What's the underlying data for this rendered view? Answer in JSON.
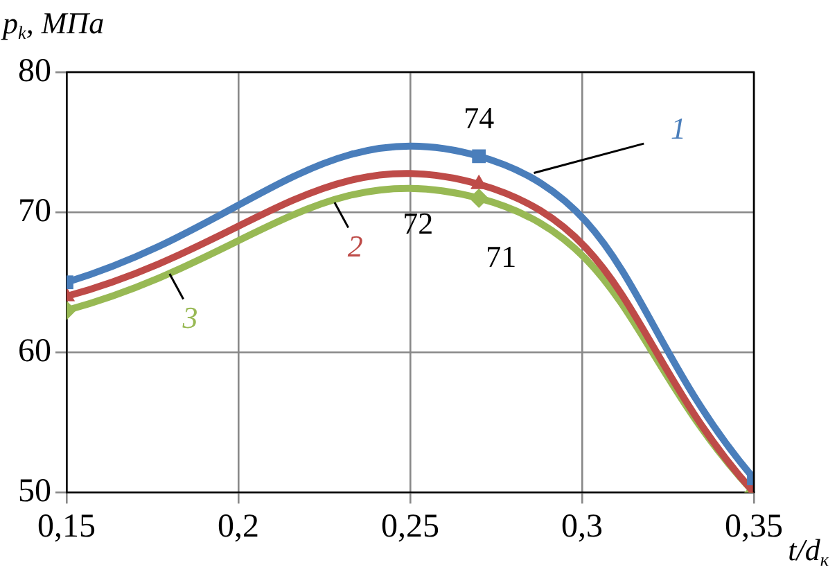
{
  "chart_data": {
    "type": "line",
    "ylabel": "p$_{k}$, МПа",
    "xlabel": "t/d$_{к}$",
    "x": [
      0.15,
      0.27,
      0.35
    ],
    "series": [
      {
        "name": "1",
        "color": "#4a7ebb",
        "values": [
          65,
          74,
          51
        ],
        "marker": "square",
        "value_labels": [
          null,
          "74",
          null
        ]
      },
      {
        "name": "2",
        "color": "#be4b48",
        "values": [
          64,
          72,
          50
        ],
        "marker": "triangle",
        "value_labels": [
          null,
          "72",
          null
        ]
      },
      {
        "name": "3",
        "color": "#98b954",
        "values": [
          63,
          71,
          50
        ],
        "marker": "diamond",
        "value_labels": [
          null,
          "71",
          null
        ]
      }
    ],
    "xlim": [
      0.15,
      0.35
    ],
    "xticks": [
      {
        "value": 0.15,
        "label": "0,15"
      },
      {
        "value": 0.2,
        "label": "0,2"
      },
      {
        "value": 0.25,
        "label": "0,25"
      },
      {
        "value": 0.3,
        "label": "0,3"
      },
      {
        "value": 0.35,
        "label": "0,35"
      }
    ],
    "ylim": [
      50,
      80
    ],
    "yticks": [
      50,
      60,
      70,
      80
    ],
    "grid": true,
    "legend": false,
    "line_style": "solid"
  }
}
